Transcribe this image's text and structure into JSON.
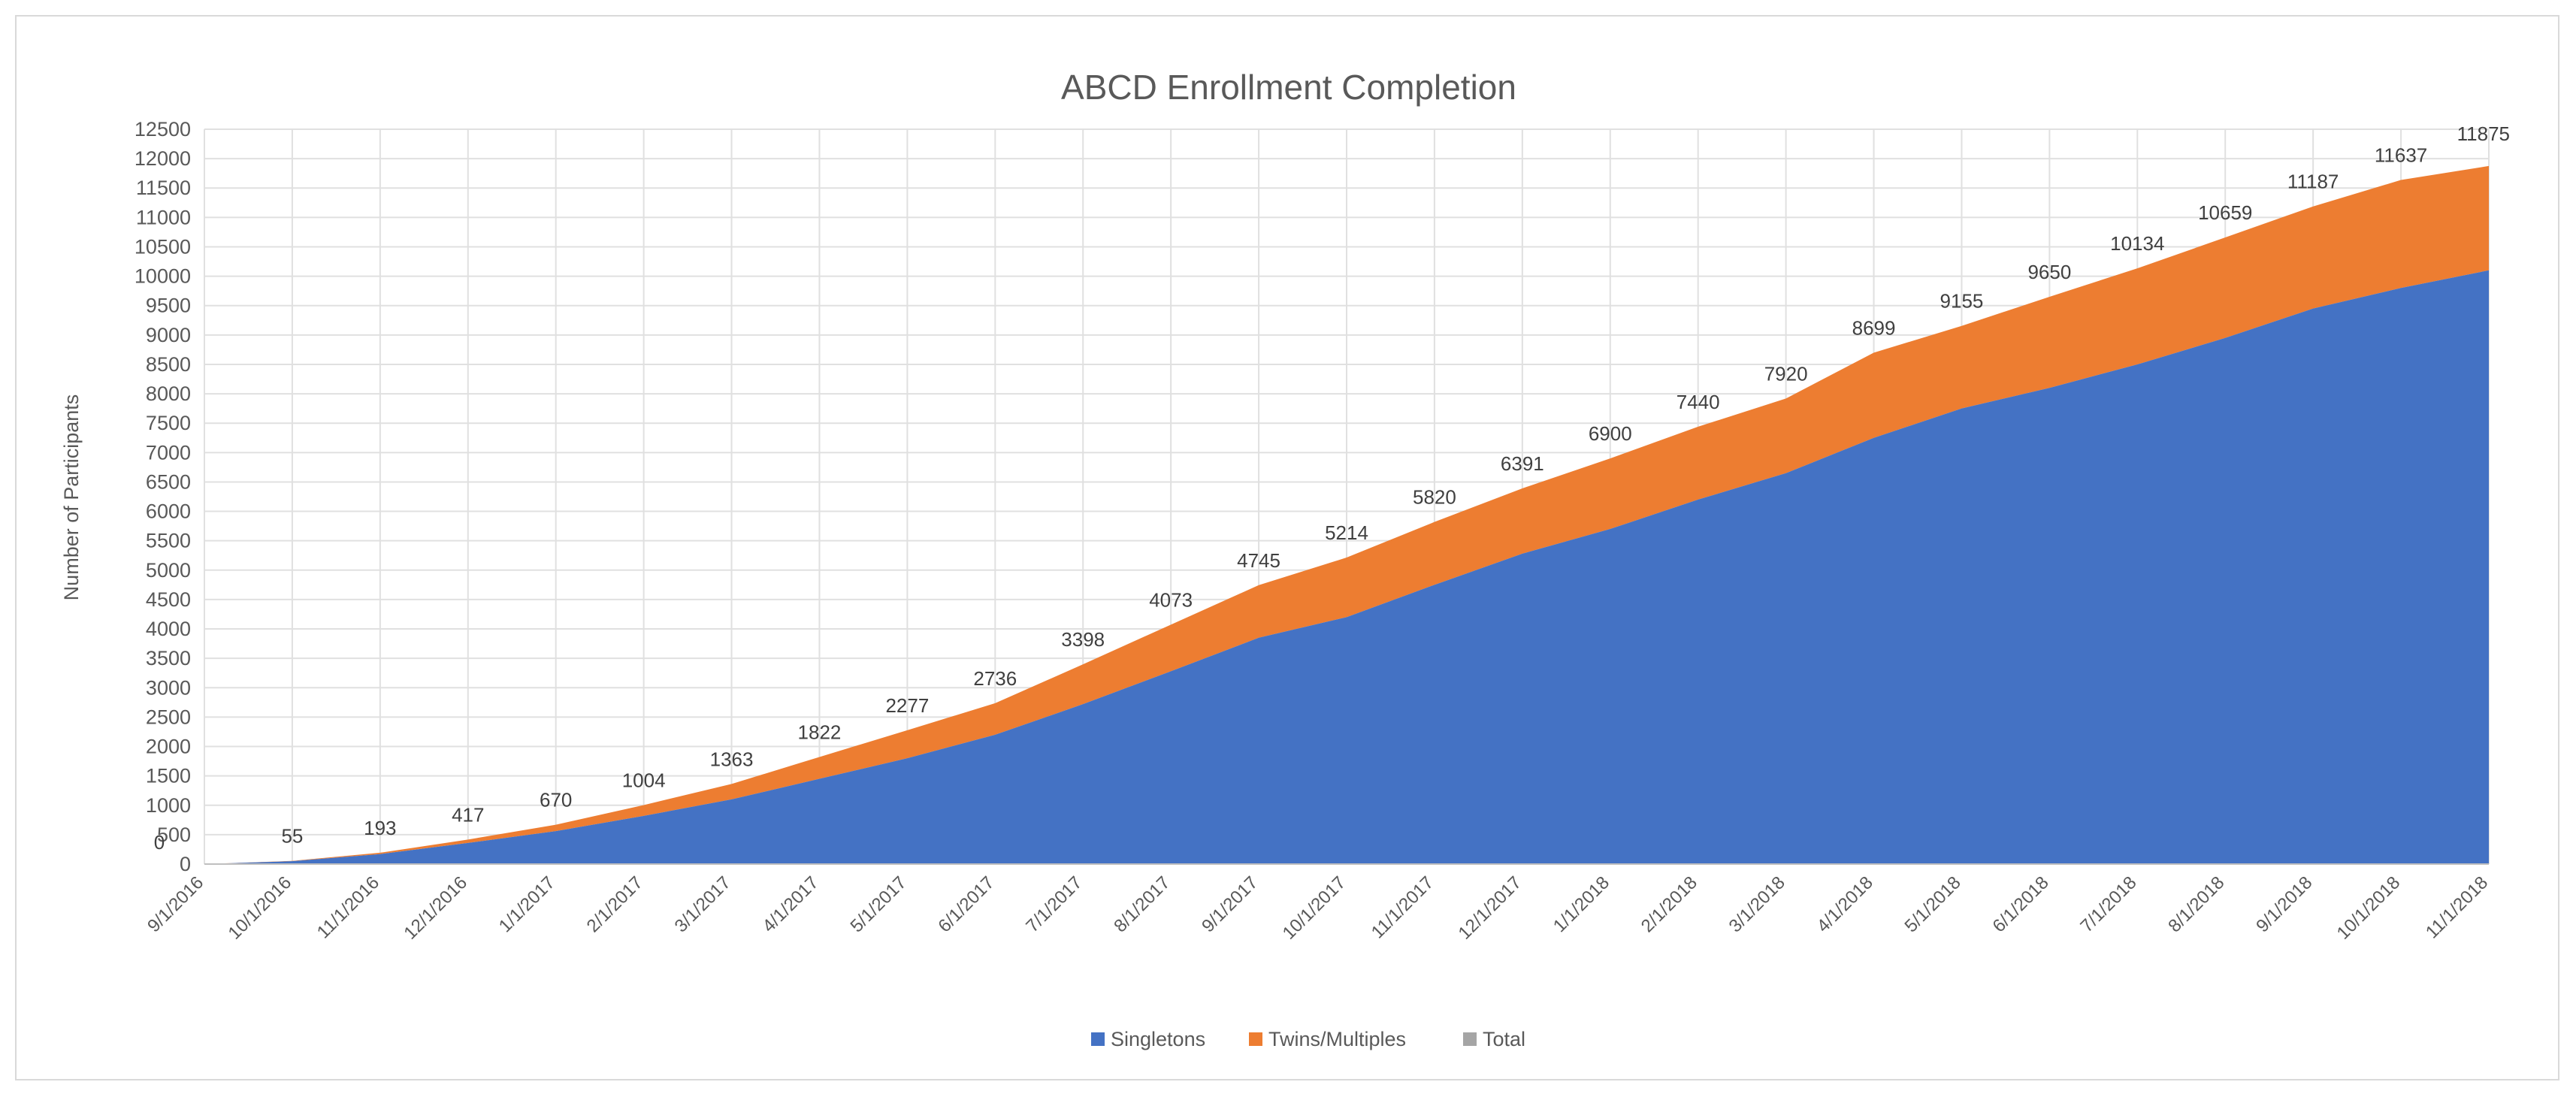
{
  "chart_data": {
    "type": "area",
    "stacked": true,
    "title": "ABCD Enrollment Completion",
    "xlabel": "",
    "ylabel": "Number of Participants",
    "ylim": [
      0,
      12500
    ],
    "ytick_step": 500,
    "grid": true,
    "legend_position": "bottom",
    "categories": [
      "9/1/2016",
      "10/1/2016",
      "11/1/2016",
      "12/1/2016",
      "1/1/2017",
      "2/1/2017",
      "3/1/2017",
      "4/1/2017",
      "5/1/2017",
      "6/1/2017",
      "7/1/2017",
      "8/1/2017",
      "9/1/2017",
      "10/1/2017",
      "11/1/2017",
      "12/1/2017",
      "1/1/2018",
      "2/1/2018",
      "3/1/2018",
      "4/1/2018",
      "5/1/2018",
      "6/1/2018",
      "7/1/2018",
      "8/1/2018",
      "9/1/2018",
      "10/1/2018",
      "11/1/2018"
    ],
    "series": [
      {
        "name": "Singletons",
        "color": "#4472c4",
        "values": [
          0,
          50,
          170,
          360,
          560,
          820,
          1100,
          1450,
          1800,
          2200,
          2720,
          3280,
          3850,
          4200,
          4750,
          5280,
          5700,
          6200,
          6650,
          7250,
          7750,
          8100,
          8500,
          8950,
          9450,
          9800,
          10100
        ]
      },
      {
        "name": "Twins/Multiples",
        "color": "#ed7d31",
        "values": [
          0,
          5,
          23,
          57,
          110,
          184,
          263,
          372,
          477,
          536,
          678,
          793,
          895,
          1014,
          1070,
          1111,
          1200,
          1240,
          1270,
          1449,
          1405,
          1550,
          1634,
          1709,
          1737,
          1837,
          1775
        ]
      },
      {
        "name": "Total",
        "color": "#a5a5a5",
        "values": [
          0,
          55,
          193,
          417,
          670,
          1004,
          1363,
          1822,
          2277,
          2736,
          3398,
          4073,
          4745,
          5214,
          5820,
          6391,
          6900,
          7440,
          7920,
          8699,
          9155,
          9650,
          10134,
          10659,
          11187,
          11637,
          11875
        ]
      }
    ]
  }
}
